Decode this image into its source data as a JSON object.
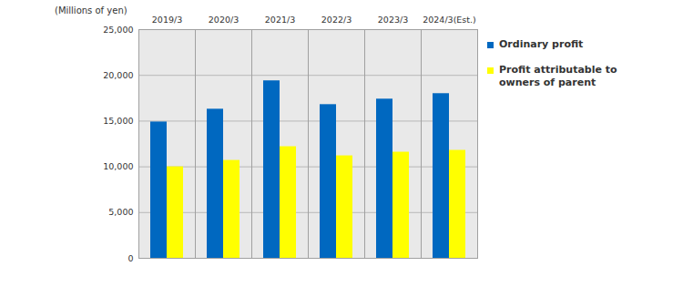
{
  "chart_data": {
    "type": "bar",
    "y_label": "(Millions of yen)",
    "categories": [
      "2019/3",
      "2020/3",
      "2021/3",
      "2022/3",
      "2023/3",
      "2024/3(Est.)"
    ],
    "series": [
      {
        "name": "Ordinary profit",
        "color": "#0068c0",
        "values": [
          14900,
          16300,
          19400,
          16800,
          17400,
          18000
        ]
      },
      {
        "name": "Profit attributable to owners of parent",
        "color": "#ffff00",
        "values": [
          10000,
          10700,
          12200,
          11200,
          11600,
          11800
        ]
      }
    ],
    "ylim": [
      0,
      25000
    ],
    "yticks": [
      0,
      {
        "value": 5000,
        "label": "5,000"
      },
      {
        "value": 10000,
        "label": "10,000"
      },
      {
        "value": 15000,
        "label": "15,000"
      },
      {
        "value": 20000,
        "label": "20,000"
      },
      {
        "value": 25000,
        "label": "25,000"
      }
    ],
    "grid": true,
    "legend": "right"
  }
}
